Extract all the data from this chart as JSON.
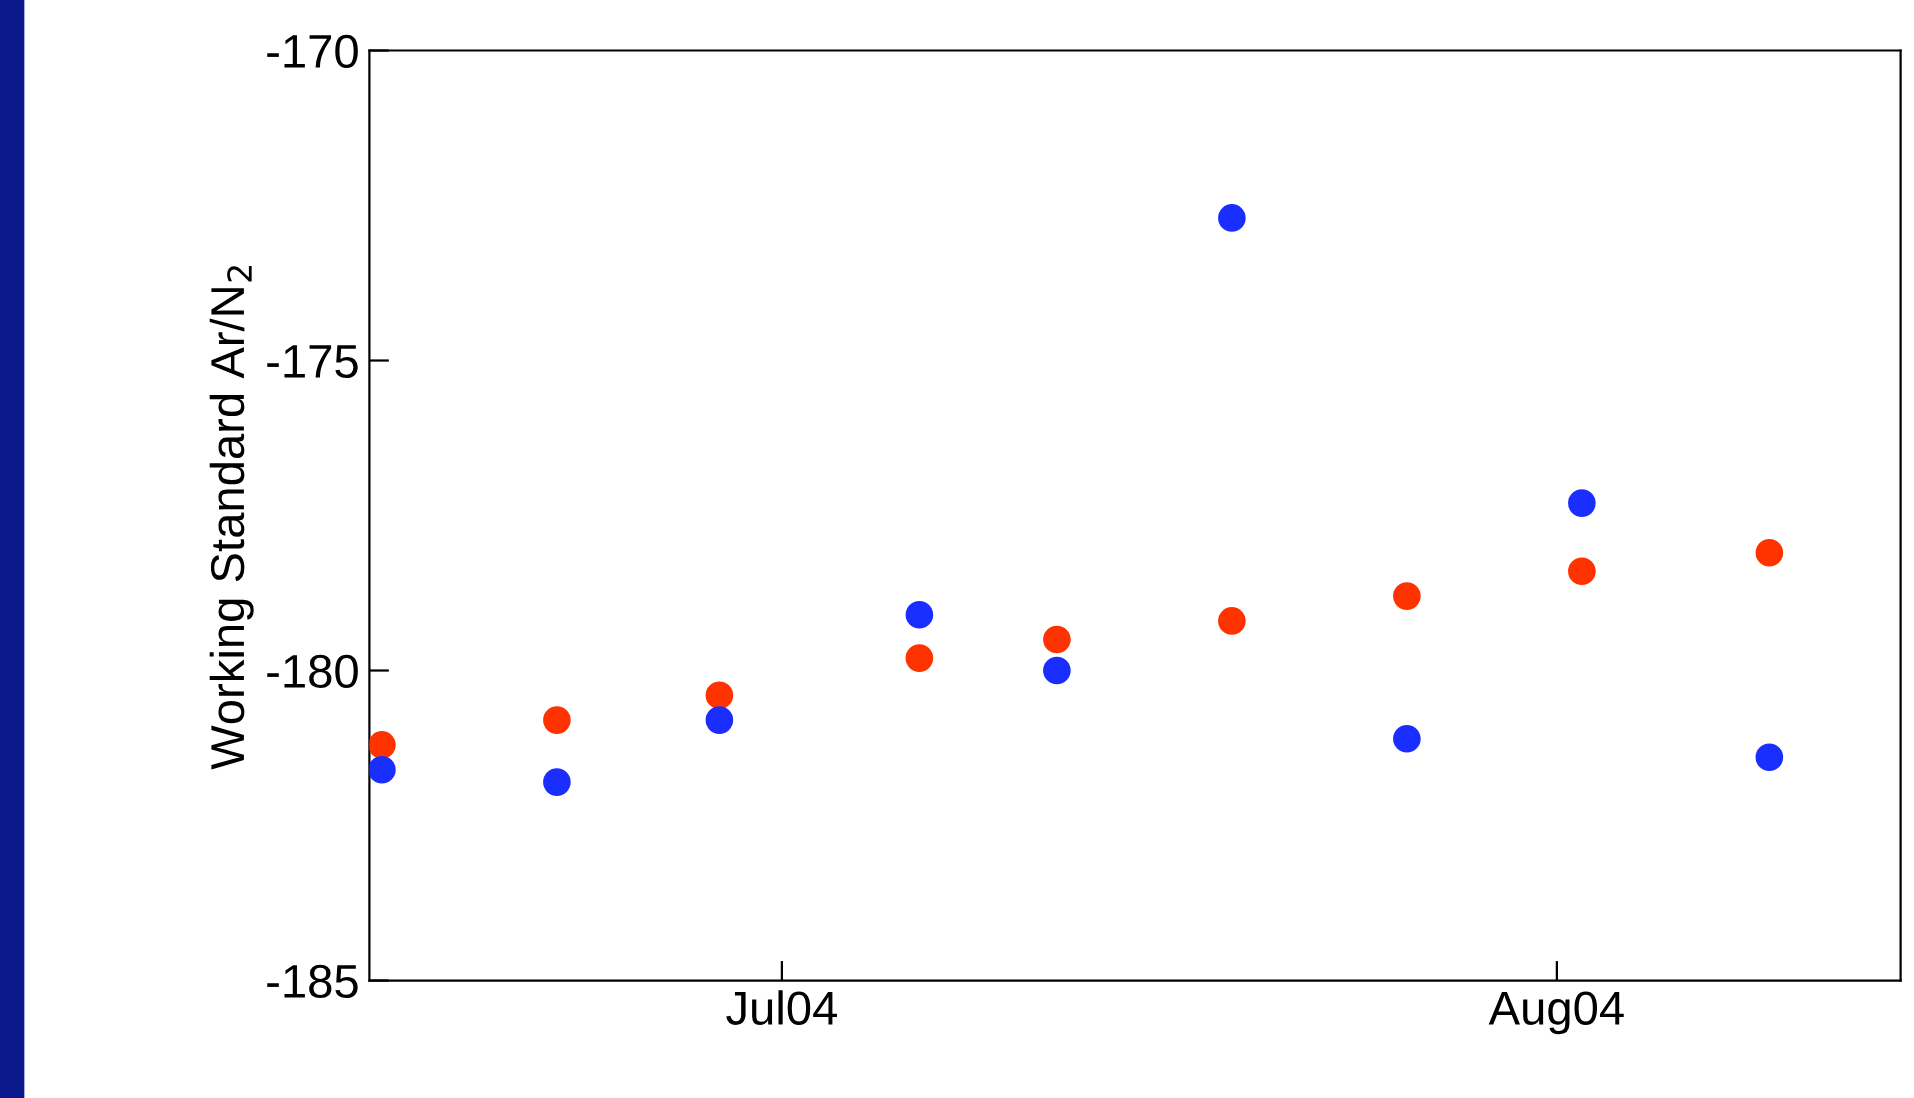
{
  "chart_data": {
    "type": "scatter",
    "ylabel": "Working Standard Ar/N$_{2}$",
    "x": [
      "2004-06-15",
      "2004-06-22",
      "2004-06-28T12:00",
      "2004-07-06T12:00",
      "2004-07-12",
      "2004-07-19",
      "2004-07-26",
      "2004-08-02",
      "2004-08-09T12:00"
    ],
    "series": [
      {
        "color": "#ff3300",
        "values": [
          -181.2,
          -180.8,
          -180.4,
          -179.8,
          -179.5,
          -179.2,
          -178.8,
          -178.4,
          -178.1
        ]
      },
      {
        "color": "#1a2eff",
        "values": [
          -181.6,
          -181.8,
          -180.8,
          -179.1,
          -180.0,
          -172.7,
          -181.1,
          -177.3,
          -181.4
        ]
      }
    ],
    "xlim": [
      "2004-06-14T12:00",
      "2004-08-14T18:00"
    ],
    "xticks": [
      {
        "value": "2004-07-01",
        "label": "Jul04"
      },
      {
        "value": "2004-08-01",
        "label": "Aug04"
      }
    ],
    "ylim": [
      -185,
      -170
    ],
    "yticks": [
      -185,
      -180,
      -175,
      -170
    ],
    "marker": "circle",
    "grid": false,
    "legend": false
  }
}
